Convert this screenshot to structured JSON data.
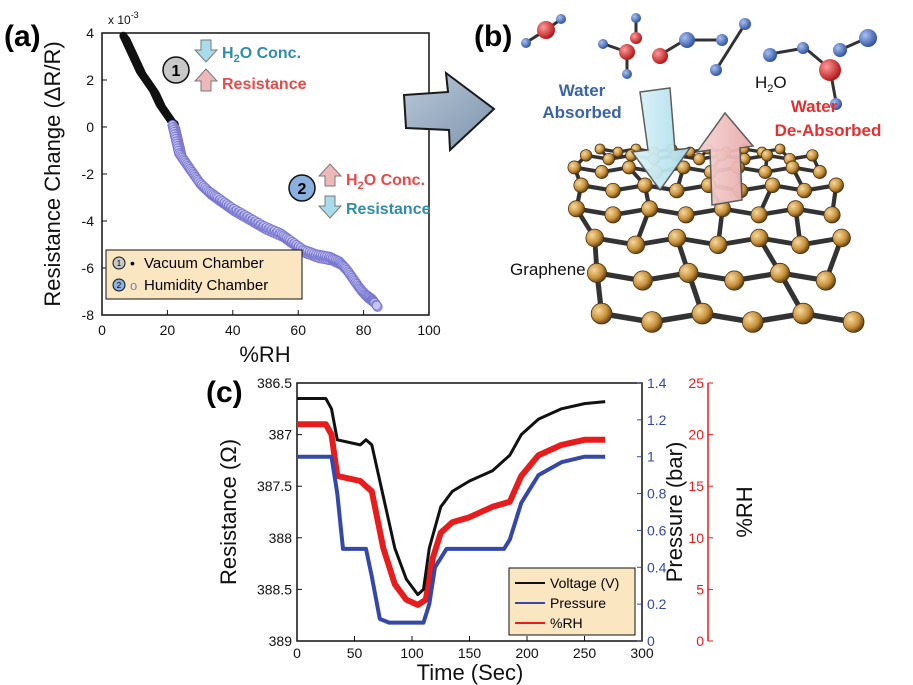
{
  "panels": {
    "a": {
      "label": "(a)",
      "chart_data": {
        "type": "scatter",
        "xlabel": "%RH",
        "ylabel": "Resistance Change (ΔR/R)",
        "y_multiplier": "x 10",
        "y_multiplier_exp": "-3",
        "xlim": [
          0,
          100
        ],
        "ylim": [
          -8,
          4
        ],
        "xticks": [
          0,
          20,
          40,
          60,
          80,
          100
        ],
        "yticks": [
          4,
          2,
          0,
          -2,
          -4,
          -6,
          -8
        ],
        "series": [
          {
            "name": "Vacuum Chamber",
            "marker": "•",
            "color": "#111111",
            "x": [
              7,
              8,
              9,
              10,
              11,
              12,
              13,
              14,
              15,
              16,
              17,
              18,
              19,
              20,
              21,
              22
            ],
            "y": [
              3.8,
              3.5,
              3.2,
              2.9,
              2.6,
              2.3,
              2.1,
              1.9,
              1.7,
              1.5,
              1.2,
              0.9,
              0.7,
              0.5,
              0.3,
              0.1
            ]
          },
          {
            "name": "Humidity Chamber",
            "marker": "o",
            "color": "#7b78d0",
            "x": [
              22,
              23,
              24,
              26,
              28,
              30,
              33,
              36,
              40,
              45,
              50,
              55,
              58,
              62,
              66,
              70,
              73,
              75,
              77,
              79,
              81,
              83,
              84
            ],
            "y": [
              0.0,
              -0.6,
              -1.2,
              -1.6,
              -2.0,
              -2.4,
              -2.8,
              -3.1,
              -3.5,
              -3.9,
              -4.3,
              -4.6,
              -4.9,
              -5.3,
              -5.5,
              -5.6,
              -5.8,
              -6.1,
              -6.5,
              -6.9,
              -7.2,
              -7.4,
              -7.6
            ]
          }
        ],
        "legend_position": "bottom-left",
        "annotations": [
          {
            "number": "1",
            "line1": "H",
            "line1_sub": "2",
            "line1_rest": "O Conc.",
            "line2": "Resistance"
          },
          {
            "number": "2",
            "line1": "H",
            "line1_sub": "2",
            "line1_rest": "O Conc.",
            "line2": "Resistance"
          }
        ]
      }
    },
    "b": {
      "label": "(b)",
      "water_absorbed_1": "Water",
      "water_absorbed_2": "Absorbed",
      "water_desorbed_1": "Water",
      "water_desorbed_2": "De-Absorbed",
      "h2o_1": "H",
      "h2o_sub": "2",
      "h2o_2": "O",
      "graphene": "Graphene",
      "colors": {
        "absorbed": "#3a64a8",
        "desorbed": "#e53030",
        "carbon": "#c8913a"
      }
    },
    "c": {
      "label": "(c)",
      "chart_data": {
        "type": "line",
        "xlabel": "Time (Sec)",
        "ylabel_left": "Resistance (Ω)",
        "ylabel_right1": "Pressure (bar)",
        "ylabel_right2": "%RH",
        "xlim": [
          0,
          300
        ],
        "xticks": [
          0,
          50,
          100,
          150,
          200,
          250,
          300
        ],
        "ylim_left": [
          389,
          386.5
        ],
        "yticks_left": [
          "386.5",
          "387",
          "387.5",
          "388",
          "388.5",
          "389"
        ],
        "ylim_right1": [
          0,
          1.4
        ],
        "yticks_right1": [
          "1.4",
          "1.2",
          "1",
          "0.8",
          "0.6",
          "0.4",
          "0.2",
          "0"
        ],
        "ylim_right2": [
          0,
          25
        ],
        "yticks_right2": [
          "25",
          "20",
          "15",
          "10",
          "5",
          "0"
        ],
        "legend_position": "bottom-right",
        "series": [
          {
            "name": "Voltage (V)",
            "color": "#111111",
            "axis": "left",
            "x": [
              0,
              25,
              30,
              35,
              55,
              60,
              65,
              75,
              85,
              95,
              105,
              110,
              115,
              125,
              135,
              150,
              170,
              185,
              195,
              210,
              230,
              250,
              268
            ],
            "y": [
              386.65,
              386.65,
              386.75,
              387.05,
              387.1,
              387.05,
              387.1,
              387.6,
              388.1,
              388.4,
              388.55,
              388.5,
              388.1,
              387.7,
              387.55,
              387.45,
              387.35,
              387.2,
              387.0,
              386.85,
              386.75,
              386.7,
              386.68
            ]
          },
          {
            "name": "Pressure",
            "color": "#3448a8",
            "axis": "right1",
            "x": [
              0,
              25,
              30,
              35,
              40,
              55,
              60,
              65,
              72,
              80,
              95,
              110,
              115,
              120,
              130,
              150,
              170,
              180,
              185,
              195,
              210,
              230,
              250,
              268
            ],
            "y": [
              1.0,
              1.0,
              1.0,
              0.8,
              0.5,
              0.5,
              0.5,
              0.35,
              0.12,
              0.1,
              0.1,
              0.1,
              0.2,
              0.4,
              0.5,
              0.5,
              0.5,
              0.5,
              0.55,
              0.75,
              0.9,
              0.97,
              1.0,
              1.0
            ]
          },
          {
            "name": "%RH",
            "color": "#e81c1c",
            "axis": "right2",
            "x": [
              0,
              25,
              30,
              35,
              55,
              60,
              65,
              75,
              85,
              95,
              105,
              112,
              118,
              125,
              135,
              150,
              170,
              185,
              195,
              210,
              230,
              250,
              268
            ],
            "y": [
              21,
              21,
              20,
              16,
              15.5,
              15,
              14.5,
              9,
              5.5,
              4,
              3.5,
              4,
              8,
              10.5,
              11.5,
              12,
              13,
              13.5,
              16,
              18,
              19,
              19.5,
              19.5
            ]
          }
        ]
      }
    }
  }
}
